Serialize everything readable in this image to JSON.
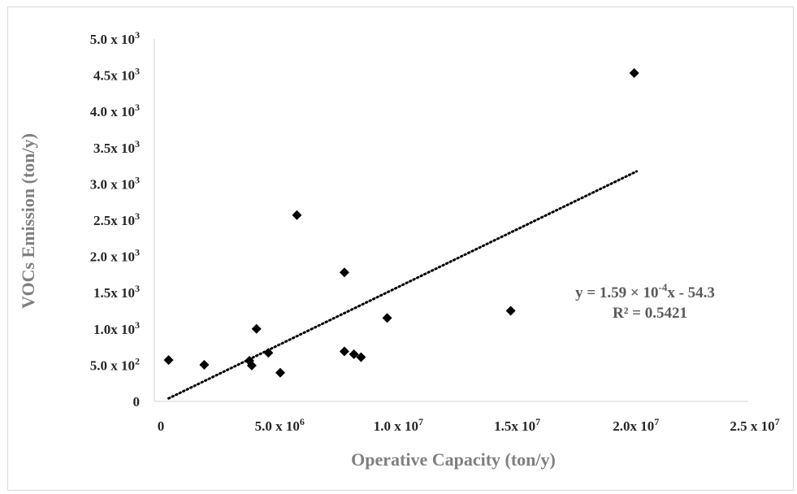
{
  "chart_data": {
    "type": "scatter",
    "xlabel": "Operative Capacity (ton/y)",
    "ylabel": "VOCs Emission (ton/y)",
    "xlim": [
      0,
      25000000
    ],
    "ylim": [
      0,
      5000
    ],
    "x_ticks": [
      {
        "value": 0,
        "mant": "0",
        "exp": ""
      },
      {
        "value": 5000000,
        "mant": "5.0 x 10",
        "exp": "6"
      },
      {
        "value": 10000000,
        "mant": "1.0 x 10",
        "exp": "7"
      },
      {
        "value": 15000000,
        "mant": "1.5x 10",
        "exp": "7"
      },
      {
        "value": 20000000,
        "mant": "2.0x 10",
        "exp": "7"
      },
      {
        "value": 25000000,
        "mant": "2.5 x 10",
        "exp": "7"
      }
    ],
    "y_ticks": [
      {
        "value": 0,
        "mant": "0",
        "exp": ""
      },
      {
        "value": 500,
        "mant": "5.0 x 10",
        "exp": "2"
      },
      {
        "value": 1000,
        "mant": "1.0x 10",
        "exp": "3"
      },
      {
        "value": 1500,
        "mant": "1.5x 10",
        "exp": "3"
      },
      {
        "value": 2000,
        "mant": "2.0 x 10",
        "exp": "3"
      },
      {
        "value": 2500,
        "mant": "2.5x 10",
        "exp": "3"
      },
      {
        "value": 3000,
        "mant": "3.0 x 10",
        "exp": "3"
      },
      {
        "value": 3500,
        "mant": "3.5x 10",
        "exp": "3"
      },
      {
        "value": 4000,
        "mant": "4.0 x 10",
        "exp": "3"
      },
      {
        "value": 4500,
        "mant": "4.5x 10",
        "exp": "3"
      },
      {
        "value": 5000,
        "mant": "5.0 x 10",
        "exp": "3"
      }
    ],
    "series": [
      {
        "marker": "diamond",
        "color": "#000000",
        "points": [
          [
            600000,
            570
          ],
          [
            2100000,
            505
          ],
          [
            4000000,
            560
          ],
          [
            4100000,
            495
          ],
          [
            4300000,
            1000
          ],
          [
            4800000,
            670
          ],
          [
            5300000,
            395
          ],
          [
            6000000,
            2570
          ],
          [
            8000000,
            1780
          ],
          [
            8000000,
            690
          ],
          [
            8400000,
            650
          ],
          [
            8700000,
            610
          ],
          [
            9800000,
            1150
          ],
          [
            15000000,
            1250
          ],
          [
            20200000,
            4530
          ]
        ]
      }
    ],
    "trendline": {
      "type": "linear",
      "style": "dotted",
      "x_range": [
        600000,
        20300000
      ],
      "slope": 0.000159,
      "intercept": -54.3,
      "equation_label": {
        "lead": "y = 1.59 × 10",
        "exp": "-4",
        "tail": "x - 54.3"
      },
      "r2_label": "R² = 0.5421"
    },
    "grid": false,
    "legend": "none"
  }
}
